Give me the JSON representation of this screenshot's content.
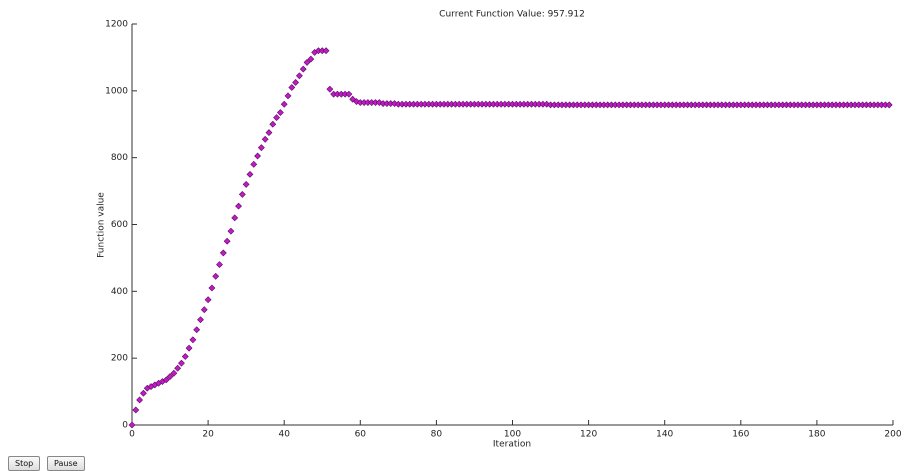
{
  "chart_data": {
    "type": "scatter",
    "title": "Current Function Value: 957.912",
    "x_label": "Iteration",
    "y_label": "Function value",
    "color": "#c21bc2",
    "edge_color": "#5a0a6a",
    "marker": "diamond",
    "xlim": [
      0,
      200
    ],
    "xticks": [
      0,
      20,
      40,
      60,
      80,
      100,
      120,
      140,
      160,
      180,
      200
    ],
    "ylim": [
      0,
      1200
    ],
    "yticks": [
      0,
      200,
      400,
      600,
      800,
      1000,
      1200
    ],
    "x": [
      0,
      1,
      2,
      3,
      4,
      5,
      6,
      7,
      8,
      9,
      10,
      11,
      12,
      13,
      14,
      15,
      16,
      17,
      18,
      19,
      20,
      21,
      22,
      23,
      24,
      25,
      26,
      27,
      28,
      29,
      30,
      31,
      32,
      33,
      34,
      35,
      36,
      37,
      38,
      39,
      40,
      41,
      42,
      43,
      44,
      45,
      46,
      47,
      48,
      49,
      50,
      51,
      52,
      53,
      54,
      55,
      56,
      57,
      58,
      59,
      60,
      61,
      62,
      63,
      64,
      65,
      66,
      67,
      68,
      69,
      70,
      71,
      72,
      73,
      74,
      75,
      76,
      77,
      78,
      79,
      80,
      81,
      82,
      83,
      84,
      85,
      86,
      87,
      88,
      89,
      90,
      91,
      92,
      93,
      94,
      95,
      96,
      97,
      98,
      99,
      100,
      101,
      102,
      103,
      104,
      105,
      106,
      107,
      108,
      109,
      110,
      111,
      112,
      113,
      114,
      115,
      116,
      117,
      118,
      119,
      120,
      121,
      122,
      123,
      124,
      125,
      126,
      127,
      128,
      129,
      130,
      131,
      132,
      133,
      134,
      135,
      136,
      137,
      138,
      139,
      140,
      141,
      142,
      143,
      144,
      145,
      146,
      147,
      148,
      149,
      150,
      151,
      152,
      153,
      154,
      155,
      156,
      157,
      158,
      159,
      160,
      161,
      162,
      163,
      164,
      165,
      166,
      167,
      168,
      169,
      170,
      171,
      172,
      173,
      174,
      175,
      176,
      177,
      178,
      179,
      180,
      181,
      182,
      183,
      184,
      185,
      186,
      187,
      188,
      189,
      190,
      191,
      192,
      193,
      194,
      195,
      196,
      197,
      198,
      199
    ],
    "values": [
      0,
      45,
      75,
      95,
      110,
      115,
      120,
      125,
      130,
      135,
      145,
      155,
      170,
      185,
      205,
      230,
      255,
      285,
      315,
      345,
      375,
      410,
      445,
      480,
      515,
      550,
      580,
      620,
      655,
      690,
      720,
      750,
      780,
      805,
      830,
      855,
      875,
      900,
      920,
      935,
      960,
      985,
      1010,
      1025,
      1045,
      1065,
      1085,
      1095,
      1115,
      1120,
      1120,
      1120,
      1005,
      990,
      990,
      990,
      990,
      990,
      975,
      968,
      965,
      965,
      965,
      965,
      965,
      965,
      962,
      962,
      962,
      962,
      960,
      960,
      960,
      960,
      960,
      960,
      960,
      960,
      960,
      960,
      960,
      960,
      960,
      960,
      960,
      960,
      960,
      960,
      960,
      960,
      960,
      960,
      960,
      960,
      960,
      960,
      960,
      960,
      960,
      960,
      960,
      960,
      960,
      960,
      960,
      960,
      960,
      960,
      960,
      960,
      958,
      958,
      958,
      958,
      958,
      958,
      958,
      958,
      958,
      958,
      958,
      958,
      958,
      958,
      958,
      958,
      958,
      958,
      958,
      958,
      958,
      958,
      958,
      958,
      958,
      958,
      958,
      958,
      958,
      958,
      958,
      958,
      958,
      958,
      958,
      958,
      958,
      958,
      958,
      958,
      958,
      958,
      958,
      958,
      958,
      958,
      958,
      958,
      958,
      958,
      958,
      958,
      958,
      958,
      958,
      958,
      958,
      958,
      958,
      958,
      958,
      958,
      958,
      958,
      958,
      958,
      958,
      958,
      958,
      958,
      958,
      958,
      958,
      958,
      958,
      958,
      958,
      958,
      958,
      958,
      958,
      958,
      958,
      958,
      958,
      958,
      958,
      958,
      958,
      957.912
    ]
  },
  "controls": {
    "stop": "Stop",
    "pause": "Pause"
  }
}
